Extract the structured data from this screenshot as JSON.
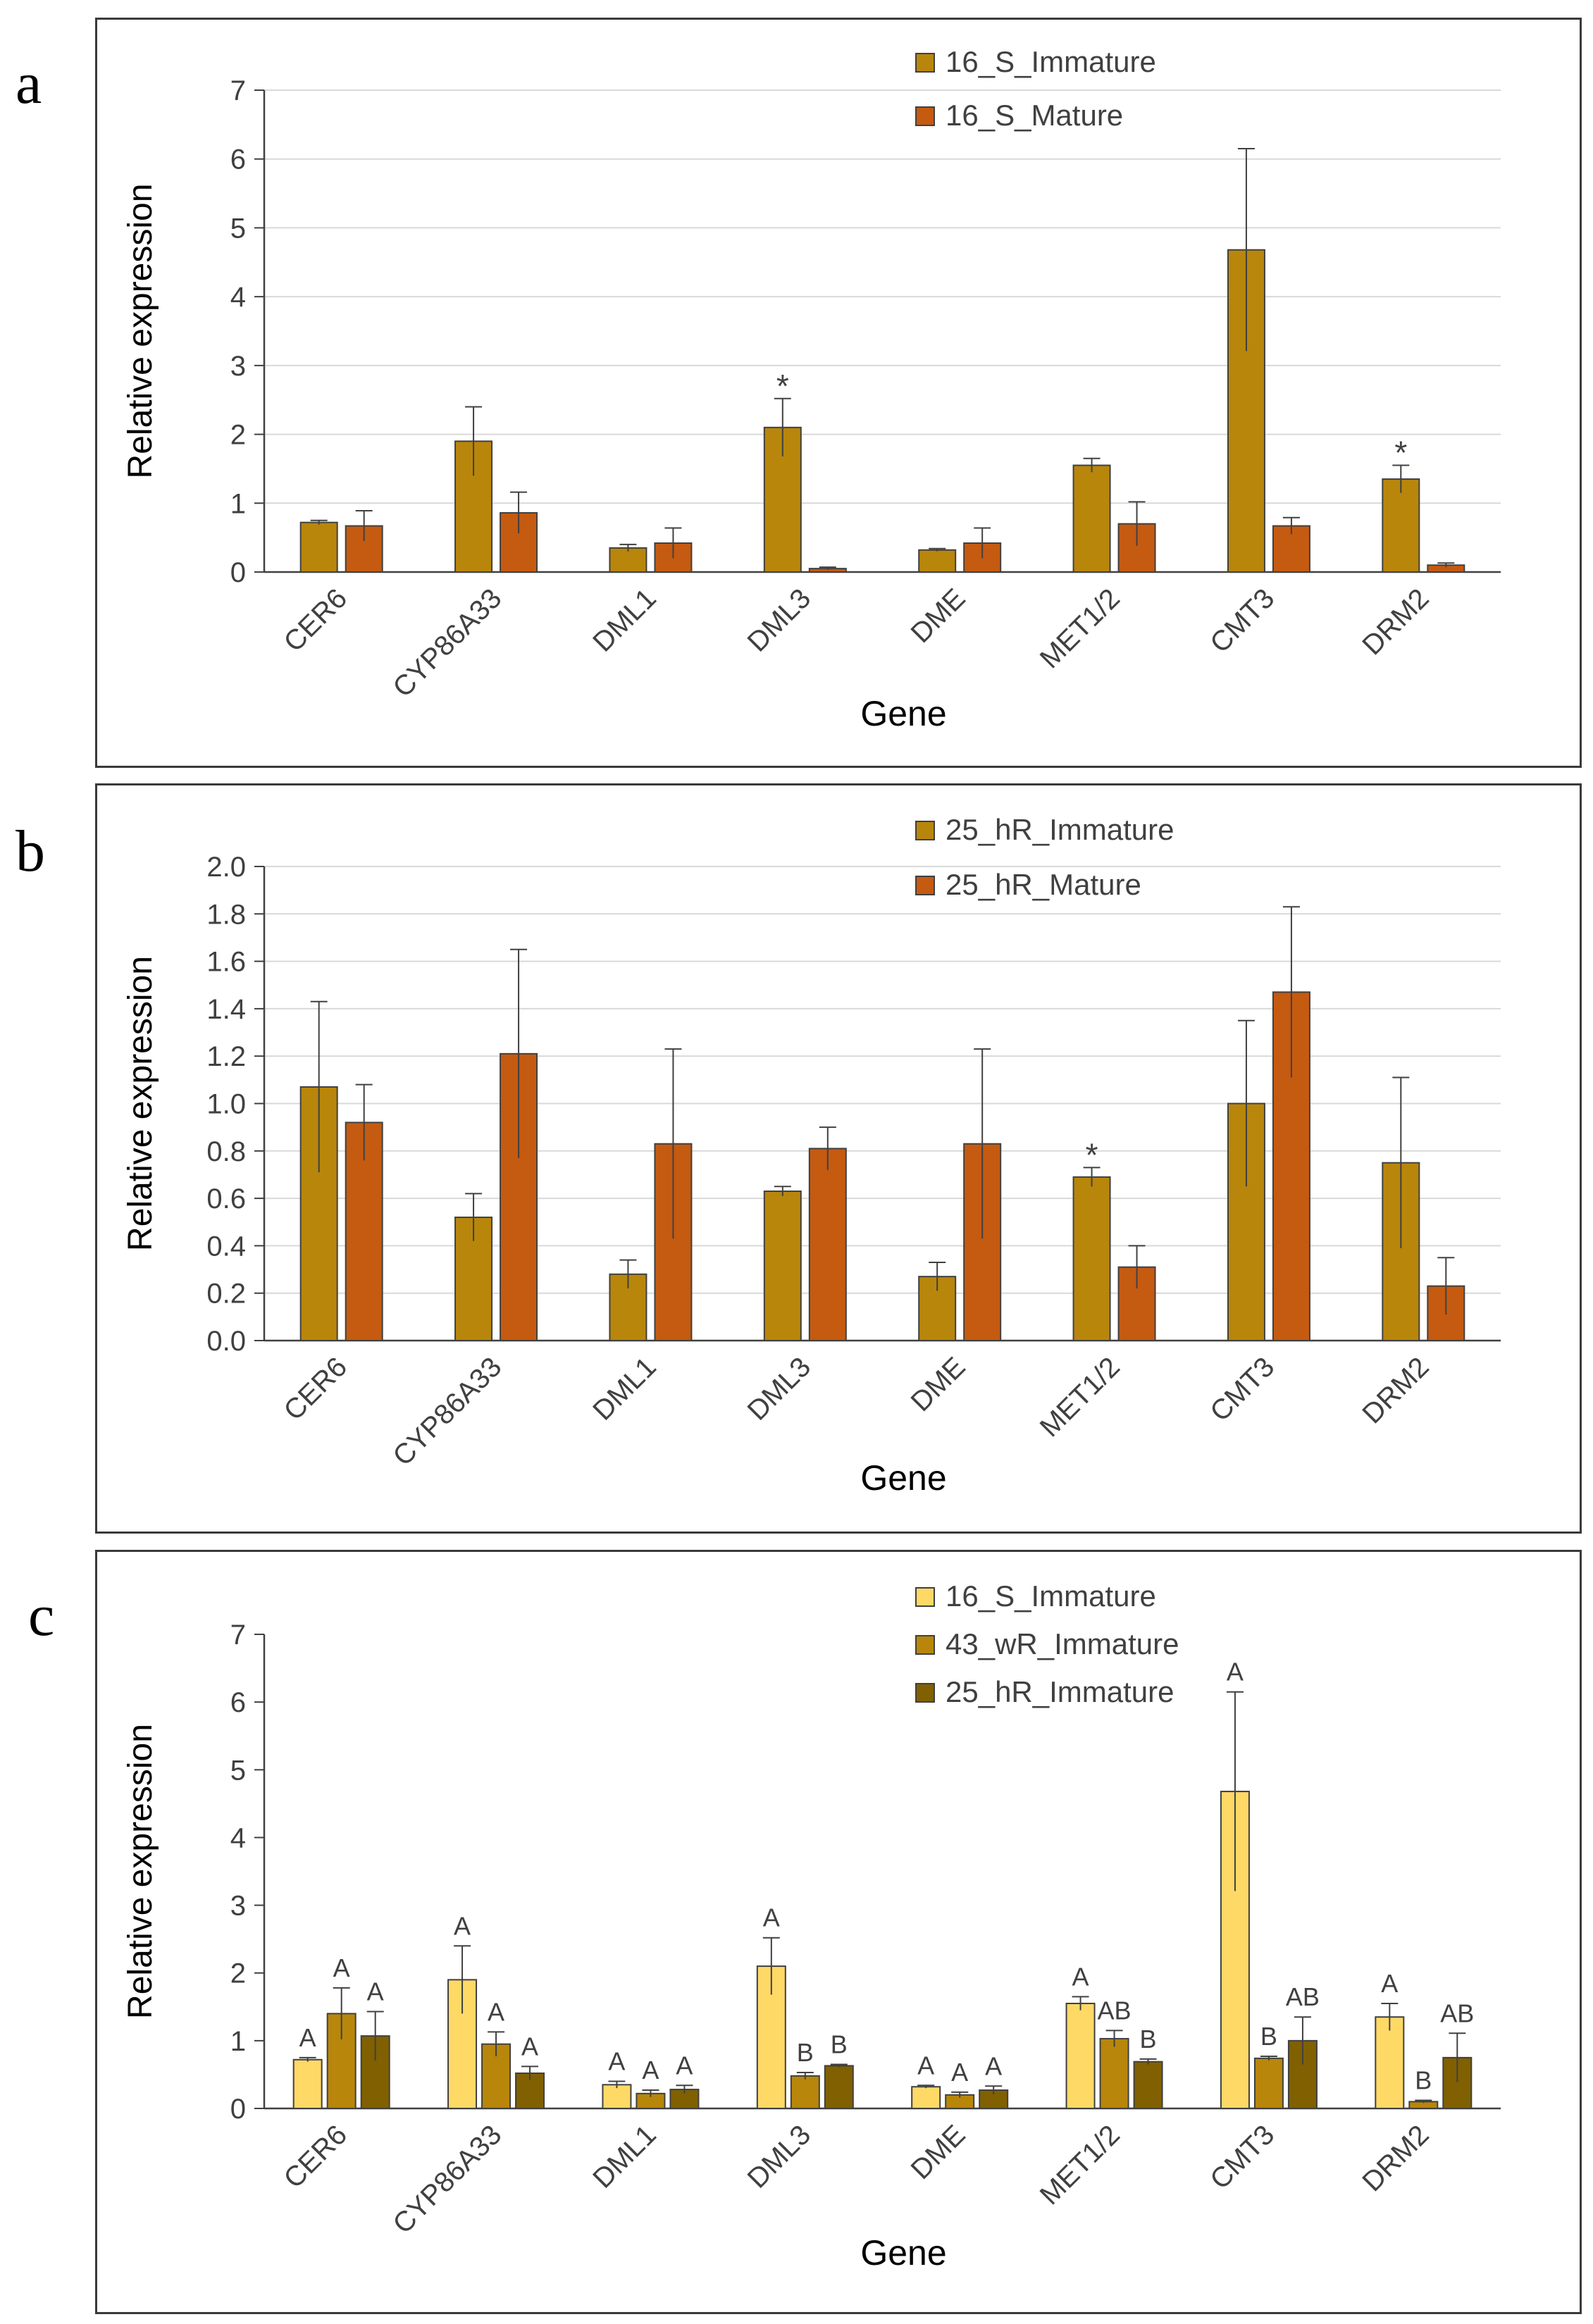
{
  "panels": [
    {
      "letter": "a",
      "chart_data": {
        "type": "bar",
        "title": "",
        "xlabel": "Gene",
        "ylabel": "Relative expression",
        "ylim": [
          0,
          7
        ],
        "yticks": [
          "0",
          "1",
          "2",
          "3",
          "4",
          "5",
          "6",
          "7"
        ],
        "grid": true,
        "legend_position": "top-right",
        "categories": [
          "CER6",
          "CYP86A33",
          "DML1",
          "DML3",
          "DME",
          "MET1/2",
          "CMT3",
          "DRM2"
        ],
        "series": [
          {
            "name": "16_S_Immature",
            "color": "#b8860b",
            "values": [
              0.72,
              1.9,
              0.35,
              2.1,
              0.32,
              1.55,
              4.68,
              1.35
            ],
            "errors": [
              0.03,
              0.5,
              0.05,
              0.42,
              0.02,
              0.1,
              1.47,
              0.2
            ]
          },
          {
            "name": "16_S_Mature",
            "color": "#c55a11",
            "values": [
              0.67,
              0.86,
              0.42,
              0.05,
              0.42,
              0.7,
              0.67,
              0.1
            ],
            "errors": [
              0.22,
              0.3,
              0.22,
              0.02,
              0.22,
              0.32,
              0.12,
              0.03
            ]
          }
        ],
        "annotations": [
          {
            "series": 0,
            "category": 3,
            "text": "*"
          },
          {
            "series": 0,
            "category": 7,
            "text": "*"
          }
        ]
      }
    },
    {
      "letter": "b",
      "chart_data": {
        "type": "bar",
        "title": "",
        "xlabel": "Gene",
        "ylabel": "Relative expression",
        "ylim": [
          0,
          2.0
        ],
        "yticks": [
          "0.0",
          "0.2",
          "0.4",
          "0.6",
          "0.8",
          "1.0",
          "1.2",
          "1.4",
          "1.6",
          "1.8",
          "2.0"
        ],
        "grid": true,
        "legend_position": "top-right",
        "categories": [
          "CER6",
          "CYP86A33",
          "DML1",
          "DML3",
          "DME",
          "MET1/2",
          "CMT3",
          "DRM2"
        ],
        "series": [
          {
            "name": "25_hR_Immature",
            "color": "#b8860b",
            "values": [
              1.07,
              0.52,
              0.28,
              0.63,
              0.27,
              0.69,
              1.0,
              0.75
            ],
            "errors": [
              0.36,
              0.1,
              0.06,
              0.02,
              0.06,
              0.04,
              0.35,
              0.36
            ]
          },
          {
            "name": "25_hR_Mature",
            "color": "#c55a11",
            "values": [
              0.92,
              1.21,
              0.83,
              0.81,
              0.83,
              0.31,
              1.47,
              0.23
            ],
            "errors": [
              0.16,
              0.44,
              0.4,
              0.09,
              0.4,
              0.09,
              0.36,
              0.12
            ]
          }
        ],
        "annotations": [
          {
            "series": 0,
            "category": 5,
            "text": "*"
          }
        ]
      }
    },
    {
      "letter": "c",
      "chart_data": {
        "type": "bar",
        "title": "",
        "xlabel": "Gene",
        "ylabel": "Relative expression",
        "ylim": [
          0,
          7
        ],
        "yticks": [
          "0",
          "1",
          "2",
          "3",
          "4",
          "5",
          "6",
          "7"
        ],
        "grid": false,
        "legend_position": "top-right",
        "categories": [
          "CER6",
          "CYP86A33",
          "DML1",
          "DML3",
          "DME",
          "MET1/2",
          "CMT3",
          "DRM2"
        ],
        "series": [
          {
            "name": "16_S_Immature",
            "color": "#ffd966",
            "values": [
              0.72,
              1.9,
              0.35,
              2.1,
              0.32,
              1.55,
              4.68,
              1.35
            ],
            "errors": [
              0.03,
              0.5,
              0.05,
              0.42,
              0.02,
              0.1,
              1.47,
              0.2
            ],
            "labels": [
              "A",
              "A",
              "A",
              "A",
              "A",
              "A",
              "A",
              "A"
            ]
          },
          {
            "name": "43_wR_Immature",
            "color": "#b8860b",
            "values": [
              1.4,
              0.95,
              0.22,
              0.48,
              0.2,
              1.03,
              0.74,
              0.1
            ],
            "errors": [
              0.38,
              0.18,
              0.05,
              0.05,
              0.04,
              0.12,
              0.03,
              0.02
            ],
            "labels": [
              "A",
              "A",
              "A",
              "B",
              "A",
              "AB",
              "B",
              "B"
            ]
          },
          {
            "name": "25_hR_Immature",
            "color": "#806000",
            "values": [
              1.07,
              0.52,
              0.28,
              0.63,
              0.27,
              0.69,
              1.0,
              0.75
            ],
            "errors": [
              0.36,
              0.1,
              0.06,
              0.02,
              0.06,
              0.04,
              0.35,
              0.36
            ],
            "labels": [
              "A",
              "A",
              "A",
              "B",
              "A",
              "B",
              "AB",
              "AB"
            ]
          }
        ]
      }
    }
  ]
}
